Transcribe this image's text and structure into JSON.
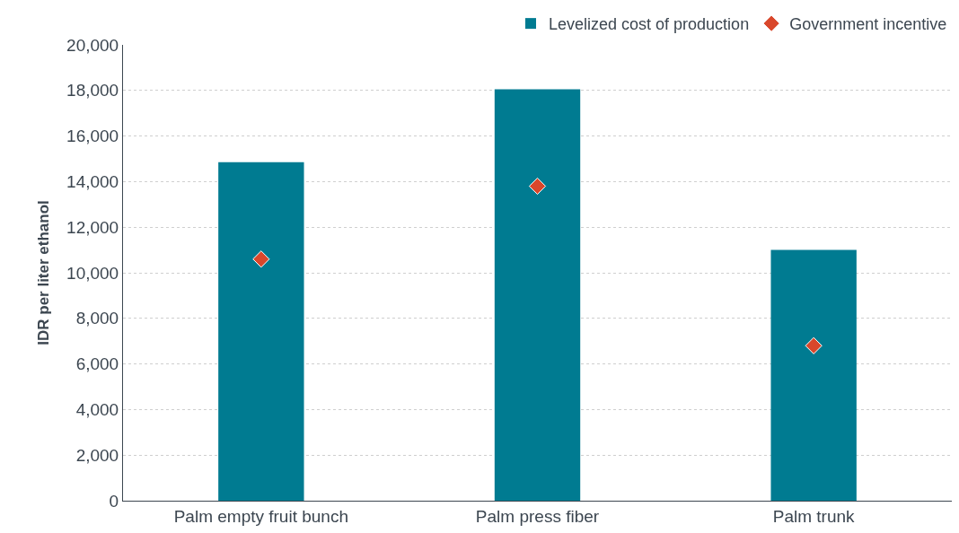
{
  "chart_data": {
    "type": "bar",
    "ylabel": "IDR per liter ethanol",
    "categories": [
      "Palm empty fruit bunch",
      "Palm press fiber",
      "Palm trunk"
    ],
    "series": [
      {
        "name": "Levelized cost of production",
        "color": "#007b91",
        "values": [
          14850,
          18050,
          11000
        ]
      },
      {
        "name": "Government incentive",
        "type": "scatter",
        "color": "#d9472b",
        "marker": "diamond",
        "values": [
          10600,
          13800,
          6800
        ]
      }
    ],
    "ylim": [
      0,
      20000
    ],
    "yticks": [
      {
        "value": 0,
        "label": "0"
      },
      {
        "value": 2000,
        "label": "2,000"
      },
      {
        "value": 4000,
        "label": "4,000"
      },
      {
        "value": 6000,
        "label": "6,000"
      },
      {
        "value": 8000,
        "label": "8,000"
      },
      {
        "value": 10000,
        "label": "10,000"
      },
      {
        "value": 12000,
        "label": "12,000"
      },
      {
        "value": 14000,
        "label": "14,000"
      },
      {
        "value": 16000,
        "label": "16,000"
      },
      {
        "value": 18000,
        "label": "18,000"
      },
      {
        "value": 20000,
        "label": "20,000"
      }
    ],
    "grid": "y",
    "legend": "top right"
  }
}
